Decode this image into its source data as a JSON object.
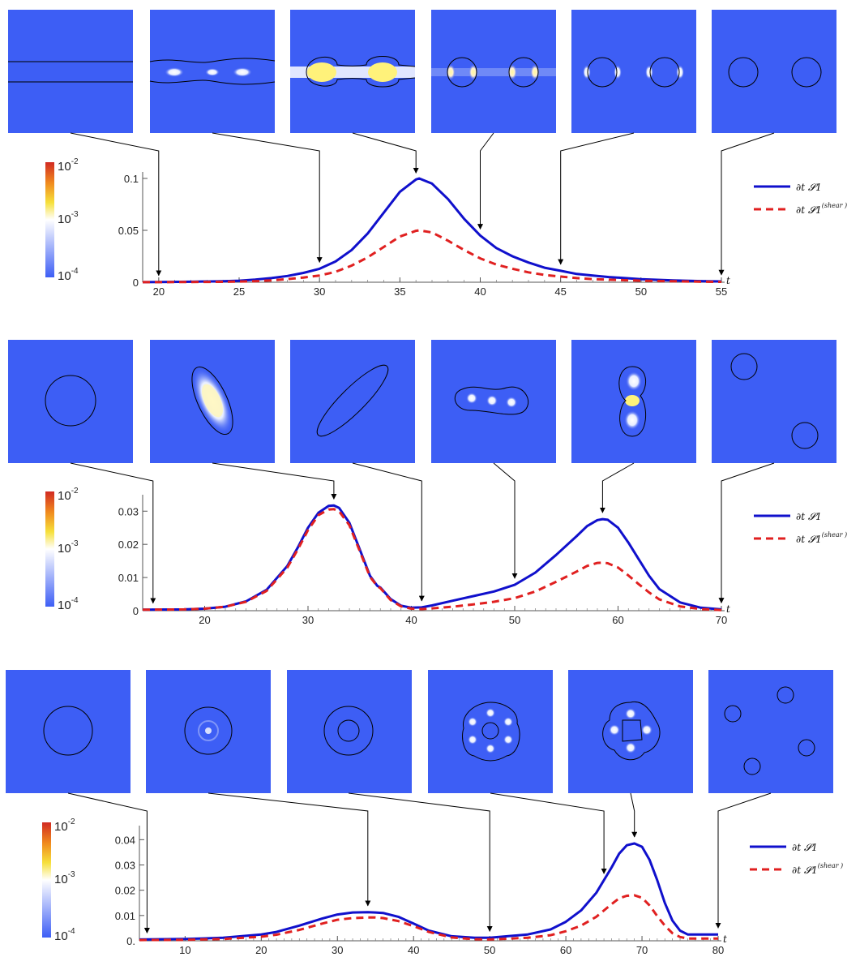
{
  "colorbar": {
    "top_base": "10",
    "top_exp": "-2",
    "mid_base": "10",
    "mid_exp": "-3",
    "bot_base": "10",
    "bot_exp": "-4",
    "colors": [
      "#d12a22",
      "#f08a1e",
      "#f6e03a",
      "#ffffff",
      "#3d5ef5"
    ]
  },
  "legend": {
    "total": "∂t 𝓢1",
    "shear": "∂t 𝓢1",
    "shear_sup": "(shear )",
    "total_color": "#1010cc",
    "shear_color": "#e02020"
  },
  "axis_t_label": "t",
  "chart_data": [
    {
      "type": "line",
      "xlim": [
        19,
        55
      ],
      "ylim": [
        0,
        0.1
      ],
      "xticks": [
        "20",
        "25",
        "30",
        "35",
        "40",
        "45",
        "50",
        "55"
      ],
      "yticks": [
        "0",
        "0.05",
        "0.1"
      ],
      "series": [
        {
          "name": "∂t S1",
          "x": [
            19,
            20,
            22,
            24,
            25,
            26,
            27,
            28,
            29,
            30,
            31,
            32,
            33,
            34,
            35,
            36,
            36.2,
            37,
            38,
            39,
            40,
            41,
            42,
            43,
            44,
            45,
            46,
            47,
            48,
            50,
            52,
            54,
            55
          ],
          "y": [
            0.0001,
            0.0002,
            0.0005,
            0.001,
            0.0015,
            0.0025,
            0.004,
            0.006,
            0.009,
            0.013,
            0.02,
            0.031,
            0.047,
            0.067,
            0.087,
            0.099,
            0.1,
            0.095,
            0.08,
            0.061,
            0.045,
            0.033,
            0.025,
            0.019,
            0.014,
            0.011,
            0.008,
            0.0065,
            0.005,
            0.003,
            0.0018,
            0.001,
            0.0008
          ]
        },
        {
          "name": "∂t S1 (shear)",
          "x": [
            19,
            20,
            22,
            24,
            25,
            26,
            27,
            28,
            29,
            30,
            31,
            32,
            33,
            34,
            35,
            36,
            36.2,
            37,
            38,
            39,
            40,
            41,
            42,
            43,
            44,
            45,
            46,
            47,
            48,
            50,
            52,
            54,
            55
          ],
          "y": [
            0.0001,
            0.0001,
            0.0002,
            0.0004,
            0.0006,
            0.001,
            0.0018,
            0.003,
            0.0045,
            0.0065,
            0.01,
            0.016,
            0.024,
            0.034,
            0.044,
            0.0495,
            0.05,
            0.048,
            0.04,
            0.031,
            0.023,
            0.017,
            0.013,
            0.0095,
            0.007,
            0.0055,
            0.004,
            0.003,
            0.0024,
            0.0015,
            0.0009,
            0.0005,
            0.0004
          ]
        }
      ],
      "snapshot_times": [
        20,
        30,
        36,
        40,
        45,
        55
      ]
    },
    {
      "type": "line",
      "xlim": [
        14,
        70
      ],
      "ylim": [
        0,
        0.033
      ],
      "xticks": [
        "20",
        "30",
        "40",
        "50",
        "60",
        "70"
      ],
      "yticks": [
        "0",
        "0.01",
        "0.02",
        "0.03"
      ],
      "series": [
        {
          "name": "∂t S1",
          "x": [
            14,
            18,
            20,
            22,
            24,
            26,
            28,
            29,
            30,
            31,
            32,
            32.5,
            33,
            34,
            35,
            36,
            36.7,
            37,
            38,
            39,
            40,
            41,
            42,
            44,
            46,
            48,
            50,
            52,
            54,
            56,
            57,
            58,
            58.5,
            59,
            60,
            61,
            62,
            63,
            64,
            66,
            68,
            70
          ],
          "y": [
            0.0003,
            0.0004,
            0.0006,
            0.0012,
            0.0028,
            0.0063,
            0.0135,
            0.019,
            0.025,
            0.0295,
            0.0316,
            0.0317,
            0.031,
            0.0265,
            0.0185,
            0.0105,
            0.0075,
            0.007,
            0.0035,
            0.0015,
            0.0009,
            0.001,
            0.0016,
            0.003,
            0.0044,
            0.0058,
            0.0078,
            0.0115,
            0.0168,
            0.0225,
            0.0255,
            0.0273,
            0.0276,
            0.0274,
            0.025,
            0.0205,
            0.0155,
            0.0105,
            0.0065,
            0.0025,
            0.0009,
            0.0004
          ]
        },
        {
          "name": "∂t S1 (shear)",
          "x": [
            14,
            18,
            20,
            22,
            24,
            26,
            28,
            29,
            30,
            31,
            32,
            32.5,
            33,
            34,
            35,
            36,
            36.7,
            37,
            38,
            39,
            40,
            41,
            42,
            44,
            46,
            48,
            50,
            52,
            54,
            56,
            57,
            58,
            58.5,
            59,
            60,
            61,
            62,
            63,
            64,
            66,
            68,
            70
          ],
          "y": [
            0.0003,
            0.0004,
            0.0006,
            0.0012,
            0.0027,
            0.006,
            0.013,
            0.0184,
            0.0243,
            0.0288,
            0.0305,
            0.0306,
            0.03,
            0.0258,
            0.018,
            0.0102,
            0.0074,
            0.0068,
            0.0032,
            0.0013,
            0.0006,
            0.0005,
            0.0007,
            0.0012,
            0.0019,
            0.0027,
            0.0038,
            0.0058,
            0.0087,
            0.0118,
            0.0135,
            0.0144,
            0.0145,
            0.0143,
            0.013,
            0.0106,
            0.008,
            0.0055,
            0.0034,
            0.0013,
            0.0005,
            0.0002
          ]
        }
      ],
      "snapshot_times": [
        15,
        32.5,
        41,
        50,
        58.5,
        70
      ]
    },
    {
      "type": "line",
      "xlim": [
        4,
        80
      ],
      "ylim": [
        0,
        0.043
      ],
      "xticks": [
        "10",
        "20",
        "30",
        "40",
        "50",
        "60",
        "70",
        "80"
      ],
      "yticks": [
        "0.",
        "0.01",
        "0.02",
        "0.03",
        "0.04"
      ],
      "series": [
        {
          "name": "∂t S1",
          "x": [
            4,
            10,
            15,
            20,
            22,
            25,
            28,
            30,
            32,
            34,
            35,
            36,
            38,
            40,
            42,
            45,
            48,
            50,
            55,
            58,
            60,
            62,
            64,
            66,
            67,
            68,
            69,
            70,
            71,
            72,
            73,
            74,
            75,
            76,
            80
          ],
          "y": [
            0.0005,
            0.0007,
            0.0012,
            0.0025,
            0.0035,
            0.006,
            0.0088,
            0.0104,
            0.0112,
            0.0113,
            0.0112,
            0.011,
            0.0095,
            0.0068,
            0.004,
            0.0018,
            0.0012,
            0.0012,
            0.0025,
            0.0045,
            0.0075,
            0.012,
            0.019,
            0.029,
            0.0345,
            0.0378,
            0.0385,
            0.0372,
            0.032,
            0.024,
            0.015,
            0.008,
            0.004,
            0.0025,
            0.0025
          ]
        },
        {
          "name": "∂t S1 (shear)",
          "x": [
            4,
            10,
            15,
            20,
            22,
            25,
            28,
            30,
            32,
            34,
            35,
            36,
            38,
            40,
            42,
            45,
            48,
            50,
            55,
            58,
            60,
            62,
            64,
            66,
            67,
            68,
            69,
            70,
            71,
            72,
            73,
            74,
            75,
            76,
            80
          ],
          "y": [
            0.0003,
            0.0004,
            0.0007,
            0.0016,
            0.0024,
            0.0043,
            0.0068,
            0.0083,
            0.009,
            0.0092,
            0.0092,
            0.009,
            0.0078,
            0.0058,
            0.0035,
            0.0013,
            0.0006,
            0.0005,
            0.0012,
            0.0022,
            0.0038,
            0.006,
            0.0095,
            0.0145,
            0.0168,
            0.0178,
            0.018,
            0.017,
            0.014,
            0.0098,
            0.006,
            0.003,
            0.0015,
            0.0009,
            0.0009
          ]
        }
      ],
      "snapshot_times": [
        5,
        34,
        50,
        65,
        69,
        80
      ]
    }
  ]
}
